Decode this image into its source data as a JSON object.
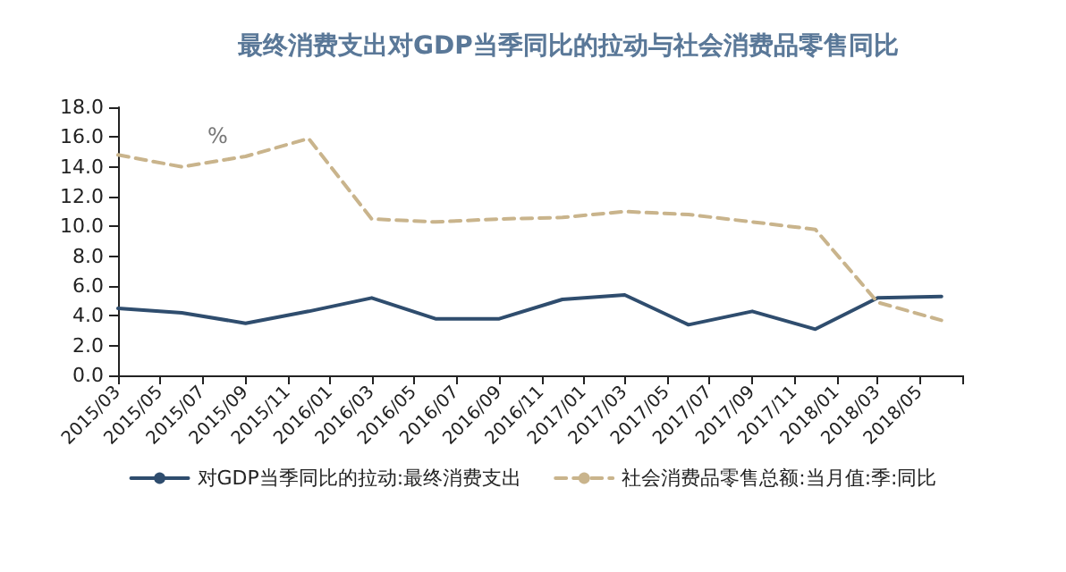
{
  "chart_data": {
    "type": "line",
    "title": "最终消费支出对GDP当季同比的拉动与社会消费品零售同比",
    "annotations": [
      "%"
    ],
    "x": [
      "2015-03",
      "2015-06",
      "2015-09",
      "2015-12",
      "2016-03",
      "2016-06",
      "2016-09",
      "2016-12",
      "2017-03",
      "2017-06",
      "2017-09",
      "2017-12",
      "2018-03",
      "2018-06"
    ],
    "series": [
      {
        "name": "对GDP当季同比的拉动:最终消费支出",
        "color": "#2f4d6e",
        "line_style": "solid",
        "values": [
          4.5,
          4.2,
          3.5,
          4.3,
          5.2,
          3.8,
          3.8,
          5.1,
          5.4,
          3.4,
          4.3,
          3.1,
          5.2,
          5.3
        ]
      },
      {
        "name": "社会消费品零售总额:当月值:季:同比",
        "color": "#c9b48c",
        "line_style": "dashed",
        "values": [
          14.8,
          14.0,
          14.7,
          15.9,
          10.5,
          10.3,
          10.5,
          10.6,
          11.0,
          10.8,
          10.3,
          9.8,
          4.9,
          3.7
        ]
      }
    ],
    "xlim": [
      "2015-03",
      "2018-07"
    ],
    "xticks": [
      {
        "value": "2015-03",
        "label": "2015/03"
      },
      {
        "value": "2015-05",
        "label": "2015/05"
      },
      {
        "value": "2015-07",
        "label": "2015/07"
      },
      {
        "value": "2015-09",
        "label": "2015/09"
      },
      {
        "value": "2015-11",
        "label": "2015/11"
      },
      {
        "value": "2016-01",
        "label": "2016/01"
      },
      {
        "value": "2016-03",
        "label": "2016/03"
      },
      {
        "value": "2016-05",
        "label": "2016/05"
      },
      {
        "value": "2016-07",
        "label": "2016/07"
      },
      {
        "value": "2016-09",
        "label": "2016/09"
      },
      {
        "value": "2016-11",
        "label": "2016/11"
      },
      {
        "value": "2017-01",
        "label": "2017/01"
      },
      {
        "value": "2017-03",
        "label": "2017/03"
      },
      {
        "value": "2017-05",
        "label": "2017/05"
      },
      {
        "value": "2017-07",
        "label": "2017/07"
      },
      {
        "value": "2017-09",
        "label": "2017/09"
      },
      {
        "value": "2017-11",
        "label": "2017/11"
      },
      {
        "value": "2018-01",
        "label": "2018/01"
      },
      {
        "value": "2018-03",
        "label": "2018/03"
      },
      {
        "value": "2018-05",
        "label": "2018/05"
      },
      {
        "value": "2018-07",
        "label": null
      }
    ],
    "ylim": [
      0,
      18
    ],
    "yticks": [
      {
        "value": 0,
        "label": "0.0"
      },
      {
        "value": 2,
        "label": "2.0"
      },
      {
        "value": 4,
        "label": "4.0"
      },
      {
        "value": 6,
        "label": "6.0"
      },
      {
        "value": 8,
        "label": "8.0"
      },
      {
        "value": 10,
        "label": "10.0"
      },
      {
        "value": 12,
        "label": "12.0"
      },
      {
        "value": 14,
        "label": "14.0"
      },
      {
        "value": 16,
        "label": "16.0"
      },
      {
        "value": 18,
        "label": "18.0"
      }
    ],
    "grid": false,
    "legend": "bottom",
    "marker": "none"
  }
}
